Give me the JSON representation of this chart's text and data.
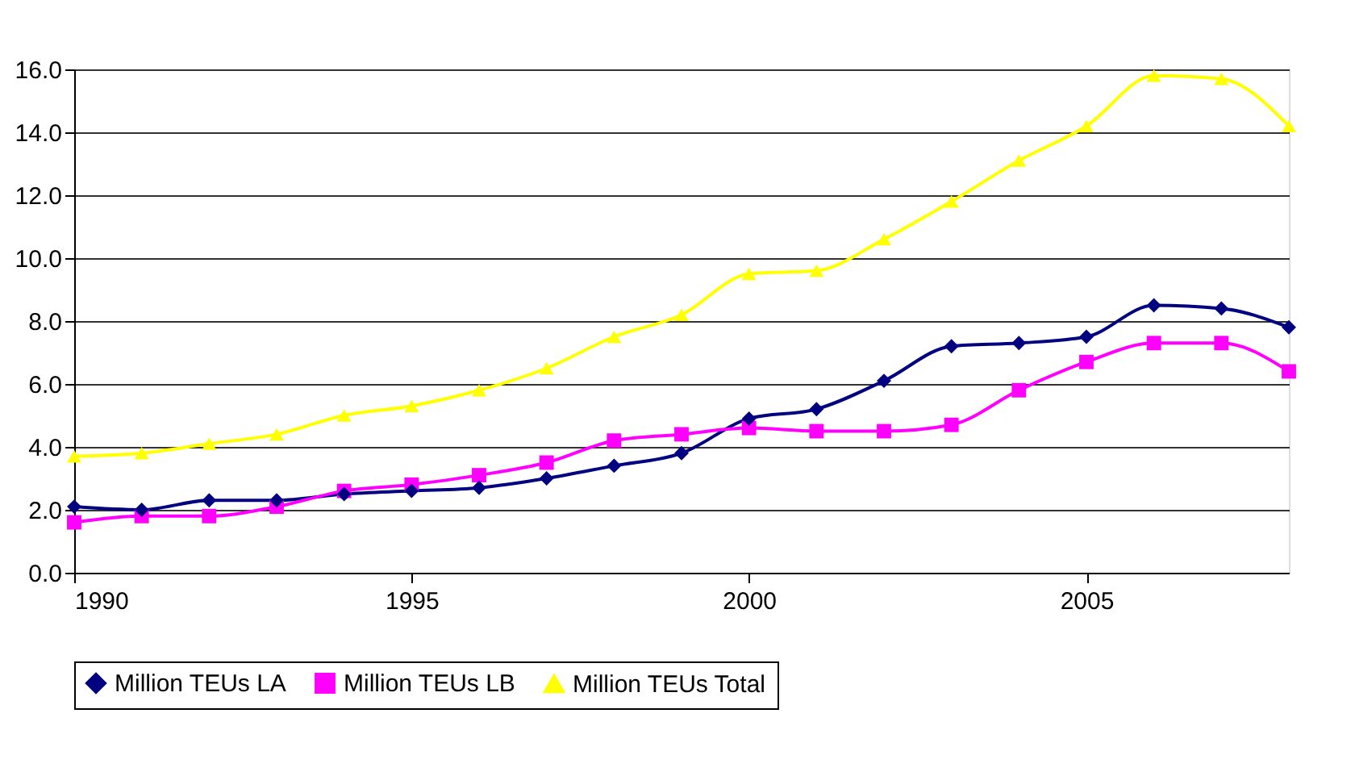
{
  "chart_data": {
    "type": "line",
    "x": [
      1990,
      1991,
      1992,
      1993,
      1994,
      1995,
      1996,
      1997,
      1998,
      1999,
      2000,
      2001,
      2002,
      2003,
      2004,
      2005,
      2006,
      2007,
      2008
    ],
    "series": [
      {
        "name": "Million TEUs LA",
        "color": "#000080",
        "marker": "diamond",
        "values": [
          2.1,
          2.0,
          2.3,
          2.3,
          2.5,
          2.6,
          2.7,
          3.0,
          3.4,
          3.8,
          4.9,
          5.2,
          6.1,
          7.2,
          7.3,
          7.5,
          8.5,
          8.4,
          7.8
        ]
      },
      {
        "name": "Million TEUs LB",
        "color": "#ff00ff",
        "marker": "square",
        "values": [
          1.6,
          1.8,
          1.8,
          2.1,
          2.6,
          2.8,
          3.1,
          3.5,
          4.2,
          4.4,
          4.6,
          4.5,
          4.5,
          4.7,
          5.8,
          6.7,
          7.3,
          7.3,
          6.4
        ]
      },
      {
        "name": "Million TEUs Total",
        "color": "#ffff00",
        "marker": "triangle",
        "values": [
          3.7,
          3.8,
          4.1,
          4.4,
          5.0,
          5.3,
          5.8,
          6.5,
          7.5,
          8.2,
          9.5,
          9.6,
          10.6,
          11.8,
          13.1,
          14.2,
          15.8,
          15.7,
          14.2
        ]
      }
    ],
    "xlim": [
      1990,
      2008
    ],
    "xticks": [
      1990,
      1995,
      2000,
      2005
    ],
    "ylim": [
      0,
      16
    ],
    "yticks": [
      {
        "value": 0,
        "label": "0.0"
      },
      {
        "value": 2,
        "label": "2.0"
      },
      {
        "value": 4,
        "label": "4.0"
      },
      {
        "value": 6,
        "label": "6.0"
      },
      {
        "value": 8,
        "label": "8.0"
      },
      {
        "value": 10,
        "label": "10.0"
      },
      {
        "value": 12,
        "label": "12.0"
      },
      {
        "value": 14,
        "label": "14.0"
      },
      {
        "value": 16,
        "label": "16.0"
      }
    ],
    "grid": "y",
    "legend": "bottom",
    "line_style": "solid"
  }
}
